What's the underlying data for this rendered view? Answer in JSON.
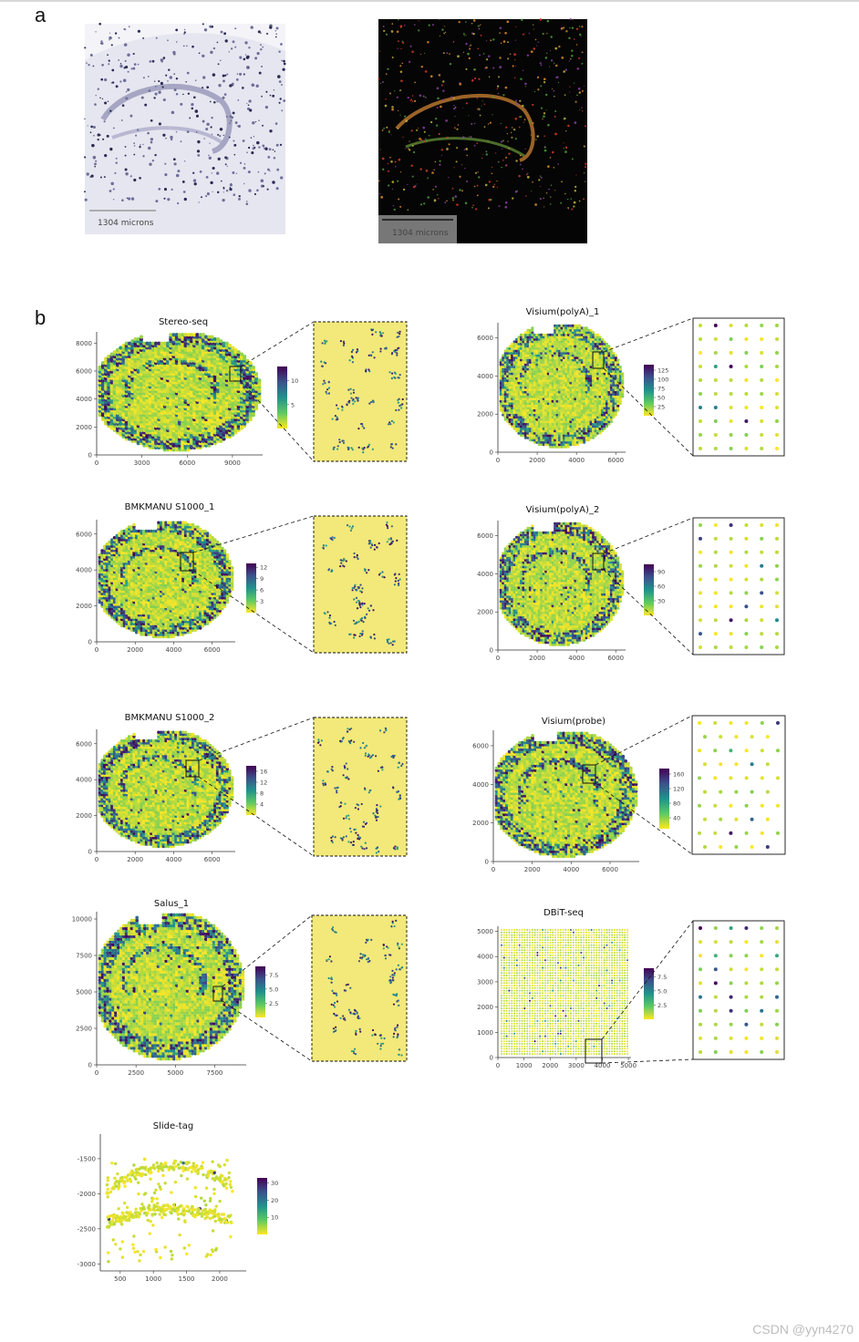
{
  "panel_labels": {
    "a": "a",
    "b": "b"
  },
  "panel_a": {
    "left_scale_label": "1304 microns",
    "right_scale_label": "1304 microns"
  },
  "watermark": "CSDN @yyn4270",
  "colormap": [
    "#440154",
    "#3b528b",
    "#21918c",
    "#5ec962",
    "#fde725"
  ],
  "chart_data": [
    {
      "type": "scatter",
      "title": "Stereo-seq",
      "has_zoom_inset": true,
      "x_ticks": [
        "0",
        "3000",
        "6000",
        "9000"
      ],
      "y_ticks": [
        "0",
        "2000",
        "4000",
        "6000",
        "8000"
      ],
      "colorbar_ticks": [
        "5",
        "10"
      ],
      "xlim": [
        0,
        11000
      ],
      "ylim": [
        0,
        8800
      ],
      "colorbar_range": [
        0,
        13
      ]
    },
    {
      "type": "scatter",
      "title": "Visium(polyA)_1",
      "has_zoom_inset": true,
      "x_ticks": [
        "0",
        "2000",
        "4000",
        "6000"
      ],
      "y_ticks": [
        "0",
        "2000",
        "4000",
        "6000"
      ],
      "colorbar_ticks": [
        "25",
        "50",
        "75",
        "100",
        "125"
      ],
      "xlim": [
        0,
        6500
      ],
      "ylim": [
        0,
        6800
      ],
      "colorbar_range": [
        0,
        140
      ]
    },
    {
      "type": "scatter",
      "title": "BMKMANU S1000_1",
      "has_zoom_inset": true,
      "x_ticks": [
        "0",
        "2000",
        "4000",
        "6000"
      ],
      "y_ticks": [
        "0",
        "2000",
        "4000",
        "6000"
      ],
      "colorbar_ticks": [
        "3",
        "6",
        "9",
        "12"
      ],
      "xlim": [
        0,
        7200
      ],
      "ylim": [
        0,
        6800
      ],
      "colorbar_range": [
        0,
        13
      ]
    },
    {
      "type": "scatter",
      "title": "Visium(polyA)_2",
      "has_zoom_inset": true,
      "x_ticks": [
        "0",
        "2000",
        "4000",
        "6000"
      ],
      "y_ticks": [
        "0",
        "2000",
        "4000",
        "6000"
      ],
      "colorbar_ticks": [
        "30",
        "60",
        "90"
      ],
      "xlim": [
        0,
        6500
      ],
      "ylim": [
        0,
        6800
      ],
      "colorbar_range": [
        0,
        105
      ]
    },
    {
      "type": "scatter",
      "title": "BMKMANU S1000_2",
      "has_zoom_inset": true,
      "x_ticks": [
        "0",
        "2000",
        "4000",
        "6000"
      ],
      "y_ticks": [
        "0",
        "2000",
        "4000",
        "6000"
      ],
      "colorbar_ticks": [
        "4",
        "8",
        "12",
        "16"
      ],
      "xlim": [
        0,
        7200
      ],
      "ylim": [
        0,
        6800
      ],
      "colorbar_range": [
        0,
        18
      ]
    },
    {
      "type": "scatter",
      "title": "Visium(probe)",
      "has_zoom_inset": true,
      "x_ticks": [
        "0",
        "2000",
        "4000",
        "6000"
      ],
      "y_ticks": [
        "0",
        "2000",
        "4000",
        "6000"
      ],
      "colorbar_ticks": [
        "40",
        "80",
        "120",
        "160"
      ],
      "xlim": [
        0,
        7500
      ],
      "ylim": [
        0,
        6800
      ],
      "colorbar_range": [
        10,
        175
      ]
    },
    {
      "type": "scatter",
      "title": "Salus_1",
      "has_zoom_inset": true,
      "x_ticks": [
        "0",
        "2500",
        "5000",
        "7500"
      ],
      "y_ticks": [
        "0",
        "2500",
        "5000",
        "7500",
        "10000"
      ],
      "colorbar_ticks": [
        "2.5",
        "5.0",
        "7.5"
      ],
      "xlim": [
        0,
        9500
      ],
      "ylim": [
        0,
        10500
      ],
      "colorbar_range": [
        0,
        9
      ]
    },
    {
      "type": "scatter",
      "title": "DBiT-seq",
      "has_zoom_inset": true,
      "x_ticks": [
        "0",
        "1000",
        "2000",
        "3000",
        "4000",
        "5000"
      ],
      "y_ticks": [
        "0",
        "1000",
        "2000",
        "3000",
        "4000",
        "5000"
      ],
      "colorbar_ticks": [
        "2.5",
        "5.0",
        "7.5"
      ],
      "xlim": [
        0,
        5100
      ],
      "ylim": [
        0,
        5200
      ],
      "colorbar_range": [
        0,
        9
      ]
    },
    {
      "type": "scatter",
      "title": "Slide-tag",
      "has_zoom_inset": false,
      "x_ticks": [
        "500",
        "1000",
        "1500",
        "2000"
      ],
      "y_ticks": [
        "-1500",
        "-2000",
        "-2500",
        "-3000"
      ],
      "colorbar_ticks": [
        "10",
        "20",
        "30"
      ],
      "xlim": [
        200,
        2400
      ],
      "ylim": [
        -3100,
        -1150
      ],
      "colorbar_range": [
        0,
        33
      ]
    }
  ]
}
